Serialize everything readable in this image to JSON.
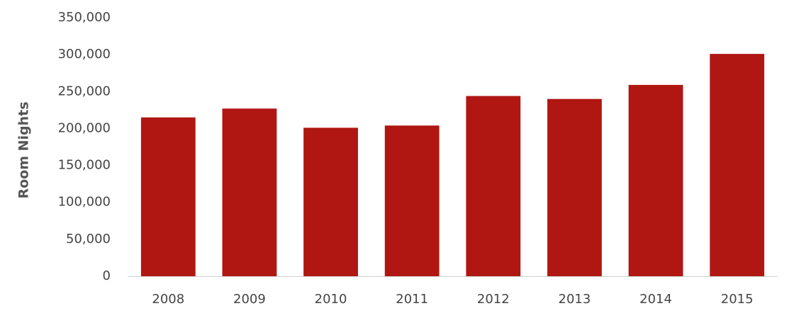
{
  "chart_data": {
    "type": "bar",
    "y_label": "Room Nights",
    "categories": [
      "2008",
      "2009",
      "2010",
      "2011",
      "2012",
      "2013",
      "2014",
      "2015"
    ],
    "values": [
      215000,
      227000,
      201000,
      204000,
      244000,
      240000,
      259000,
      301000
    ],
    "color": "#b01712",
    "ylim": [
      0,
      350000
    ],
    "yticks": [
      0,
      {
        "value": 50000,
        "label": "50,000"
      },
      {
        "value": 100000,
        "label": "100,000"
      },
      {
        "value": 150000,
        "label": "150,000"
      },
      {
        "value": 200000,
        "label": "200,000"
      },
      {
        "value": 250000,
        "label": "250,000"
      },
      {
        "value": 300000,
        "label": "300,000"
      },
      {
        "value": 350000,
        "label": "350,000"
      }
    ],
    "grid": false
  }
}
